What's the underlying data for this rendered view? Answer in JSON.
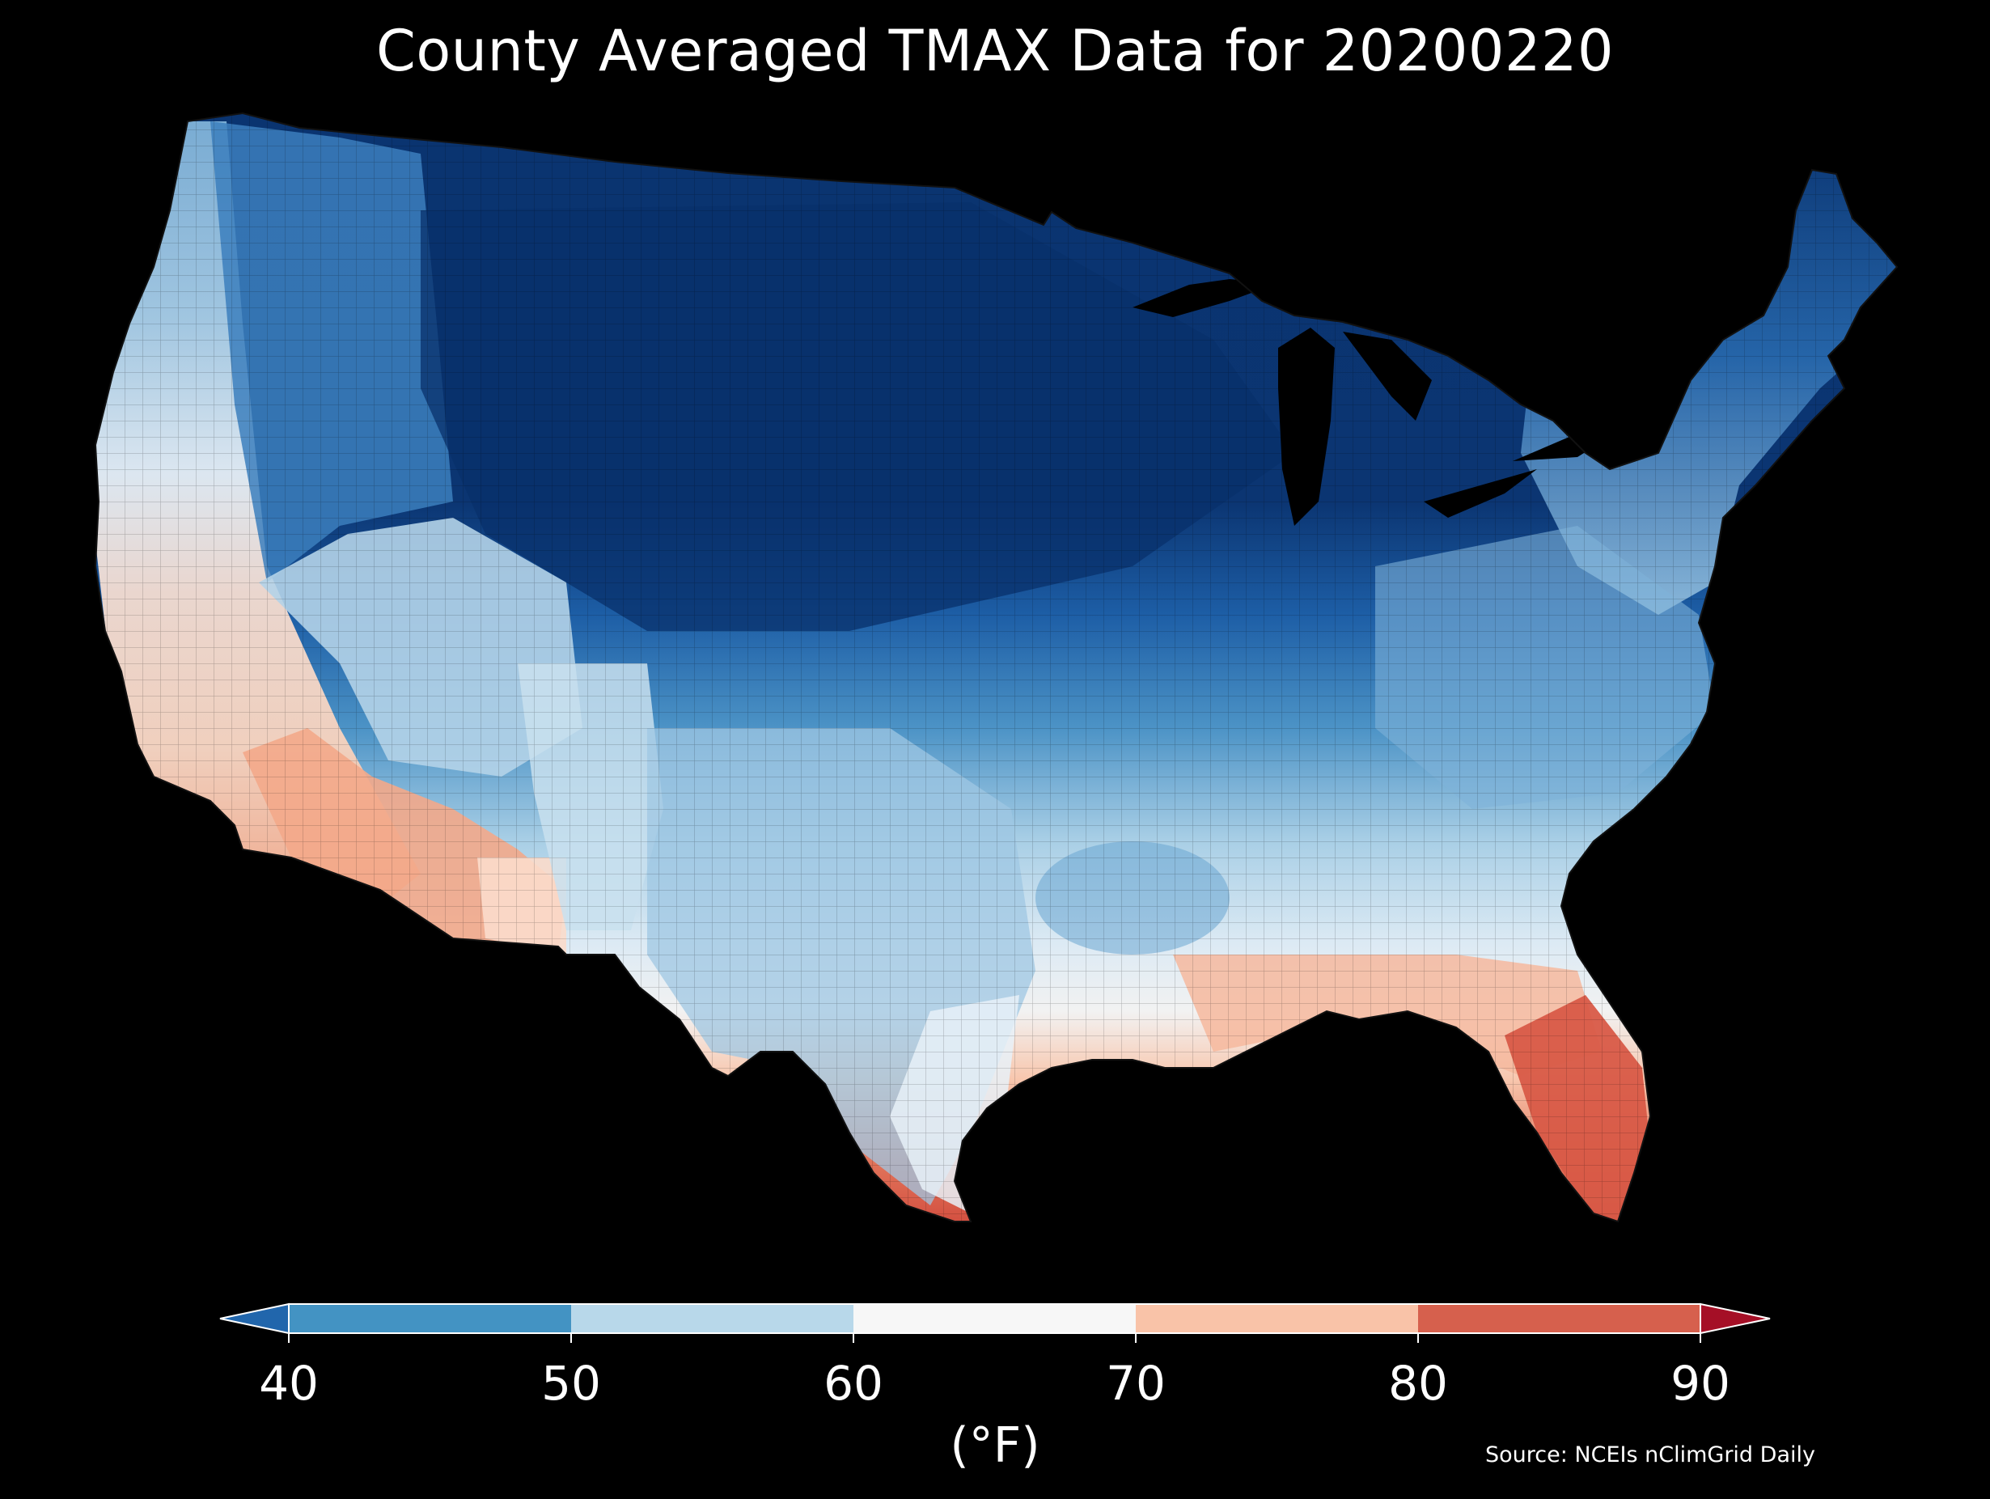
{
  "title": "County Averaged TMAX Data for 20200220",
  "colorbar": {
    "units_label": "(°F)",
    "ticks": [
      "40",
      "50",
      "60",
      "70",
      "80",
      "90"
    ],
    "bins": [
      {
        "range": "<40",
        "color": "#2166ac"
      },
      {
        "range": "40-50",
        "color": "#4393c3"
      },
      {
        "range": "50-60",
        "color": "#b8d8ea"
      },
      {
        "range": "60-70",
        "color": "#f7f7f7"
      },
      {
        "range": "70-80",
        "color": "#f9c3a8"
      },
      {
        "range": "80-90",
        "color": "#d6604d"
      },
      {
        "range": ">90",
        "color": "#a50f26"
      }
    ]
  },
  "source": "Source: NCEIs nClimGrid Daily",
  "map": {
    "region": "Contiguous United States",
    "variable": "TMAX",
    "date": "20200220",
    "fill_colors": {
      "very_cold": "#08306b",
      "cold": "#1f5fa3",
      "cool": "#4a90c4",
      "mild": "#9cc6e2",
      "near_60": "#e3eef6",
      "warm_70": "#f9c3a8",
      "hot_80": "#d6604d",
      "background": "#000000"
    }
  }
}
